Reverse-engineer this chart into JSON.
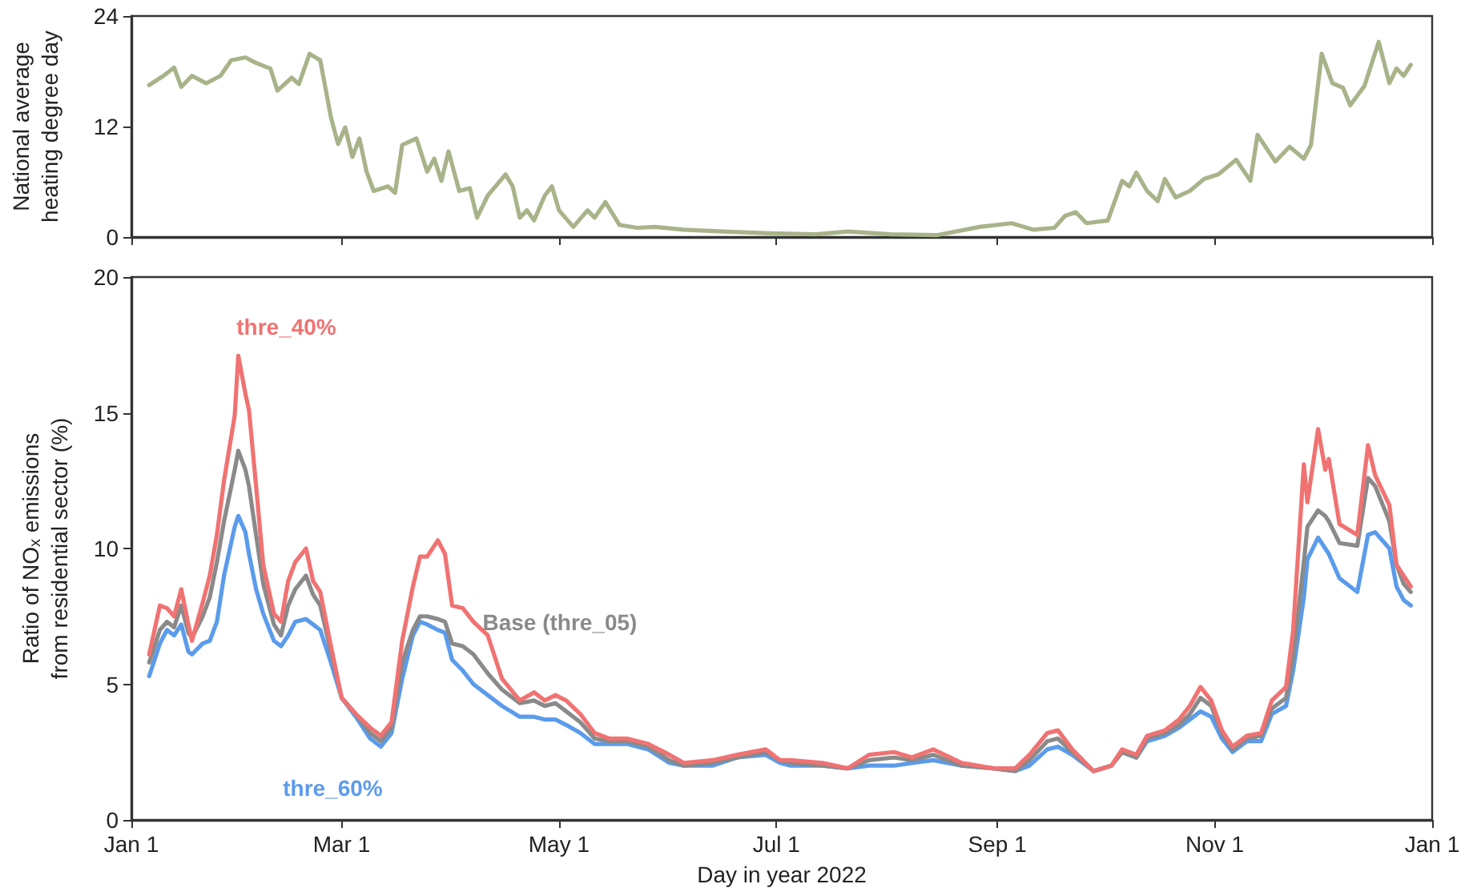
{
  "chart_data": [
    {
      "type": "line",
      "ylabel": "National average heating degree day",
      "xlim": [
        "2022-01-01",
        "2023-01-01"
      ],
      "ylim": [
        0,
        24
      ],
      "yticks": [
        0,
        12,
        24
      ],
      "tick_labels": "y",
      "grid": false,
      "legend": false,
      "marker": "none",
      "xticks": [
        {
          "value": "2022-01-01",
          "label": null
        },
        {
          "value": "2022-03-01",
          "label": null
        },
        {
          "value": "2022-05-01",
          "label": null
        },
        {
          "value": "2022-07-01",
          "label": null
        },
        {
          "value": "2022-09-01",
          "label": null
        },
        {
          "value": "2022-11-01",
          "label": null
        },
        {
          "value": "2023-01-01",
          "label": null
        }
      ],
      "x": [
        "2022-01-06",
        "2022-01-10",
        "2022-01-13",
        "2022-01-15",
        "2022-01-18",
        "2022-01-22",
        "2022-01-26",
        "2022-01-29",
        "2022-02-02",
        "2022-02-05",
        "2022-02-09",
        "2022-02-11",
        "2022-02-15",
        "2022-02-17",
        "2022-02-20",
        "2022-02-23",
        "2022-02-26",
        "2022-02-28",
        "2022-03-02",
        "2022-03-04",
        "2022-03-06",
        "2022-03-08",
        "2022-03-10",
        "2022-03-14",
        "2022-03-16",
        "2022-03-18",
        "2022-03-22",
        "2022-03-25",
        "2022-03-27",
        "2022-03-29",
        "2022-03-31",
        "2022-04-03",
        "2022-04-06",
        "2022-04-08",
        "2022-04-11",
        "2022-04-16",
        "2022-04-18",
        "2022-04-20",
        "2022-04-22",
        "2022-04-24",
        "2022-04-27",
        "2022-04-29",
        "2022-05-01",
        "2022-05-05",
        "2022-05-09",
        "2022-05-11",
        "2022-05-14",
        "2022-05-18",
        "2022-05-23",
        "2022-05-28",
        "2022-06-05",
        "2022-06-16",
        "2022-06-29",
        "2022-07-12",
        "2022-07-21",
        "2022-08-02",
        "2022-08-15",
        "2022-08-27",
        "2022-09-05",
        "2022-09-11",
        "2022-09-17",
        "2022-09-20",
        "2022-09-23",
        "2022-09-26",
        "2022-10-02",
        "2022-10-06",
        "2022-10-08",
        "2022-10-10",
        "2022-10-13",
        "2022-10-16",
        "2022-10-18",
        "2022-10-21",
        "2022-10-25",
        "2022-10-29",
        "2022-11-02",
        "2022-11-07",
        "2022-11-11",
        "2022-11-13",
        "2022-11-18",
        "2022-11-22",
        "2022-11-26",
        "2022-11-28",
        "2022-12-01",
        "2022-12-04",
        "2022-12-07",
        "2022-12-09",
        "2022-12-13",
        "2022-12-17",
        "2022-12-20",
        "2022-12-22",
        "2022-12-24",
        "2022-12-26"
      ],
      "series": [
        {
          "color": "#a8b38a",
          "values": [
            16.5,
            17.5,
            18.4,
            16.3,
            17.5,
            16.7,
            17.5,
            19.2,
            19.5,
            18.9,
            18.3,
            15.9,
            17.3,
            16.6,
            19.9,
            19.2,
            13.0,
            10.1,
            11.9,
            8.7,
            10.7,
            7.1,
            5.0,
            5.5,
            4.8,
            10.0,
            10.7,
            7.1,
            8.5,
            6.1,
            9.3,
            5.0,
            5.3,
            2.1,
            4.5,
            6.8,
            5.5,
            2.1,
            2.9,
            1.8,
            4.5,
            5.5,
            2.9,
            1.1,
            2.9,
            2.1,
            3.8,
            1.3,
            1.0,
            1.1,
            0.8,
            0.6,
            0.4,
            0.3,
            0.6,
            0.3,
            0.2,
            1.1,
            1.5,
            0.8,
            1.0,
            2.3,
            2.7,
            1.5,
            1.8,
            6.1,
            5.5,
            7.0,
            5.0,
            3.9,
            6.3,
            4.3,
            5.0,
            6.3,
            6.8,
            8.4,
            6.1,
            11.1,
            8.2,
            9.8,
            8.5,
            10.0,
            19.9,
            16.7,
            16.2,
            14.3,
            16.4,
            21.2,
            16.7,
            18.3,
            17.5,
            18.7
          ]
        }
      ]
    },
    {
      "type": "line",
      "xlabel": "Day in year 2022",
      "ylabel": "Ratio of NO$_{x}$ emissions from residential sector (%)",
      "xlim": [
        "2022-01-01",
        "2023-01-01"
      ],
      "ylim": [
        0,
        20
      ],
      "yticks": [
        0,
        5,
        10,
        15,
        20
      ],
      "grid": false,
      "legend": false,
      "marker": "none",
      "xticks": [
        {
          "value": "2022-01-01",
          "label": "Jan 1"
        },
        {
          "value": "2022-03-01",
          "label": "Mar 1"
        },
        {
          "value": "2022-05-01",
          "label": "May 1"
        },
        {
          "value": "2022-07-01",
          "label": "Jul 1"
        },
        {
          "value": "2022-09-01",
          "label": "Sep 1"
        },
        {
          "value": "2022-11-01",
          "label": "Nov 1"
        },
        {
          "value": "2023-01-01",
          "label": "Jan 1"
        }
      ],
      "x": [
        "2022-01-06",
        "2022-01-09",
        "2022-01-11",
        "2022-01-13",
        "2022-01-15",
        "2022-01-17",
        "2022-01-18",
        "2022-01-21",
        "2022-01-23",
        "2022-01-25",
        "2022-01-27",
        "2022-01-30",
        "2022-01-31",
        "2022-02-02",
        "2022-02-03",
        "2022-02-05",
        "2022-02-07",
        "2022-02-10",
        "2022-02-12",
        "2022-02-14",
        "2022-02-16",
        "2022-02-19",
        "2022-02-21",
        "2022-02-23",
        "2022-02-26",
        "2022-03-01",
        "2022-03-05",
        "2022-03-09",
        "2022-03-12",
        "2022-03-15",
        "2022-03-18",
        "2022-03-21",
        "2022-03-23",
        "2022-03-25",
        "2022-03-28",
        "2022-03-30",
        "2022-04-01",
        "2022-04-04",
        "2022-04-07",
        "2022-04-11",
        "2022-04-15",
        "2022-04-20",
        "2022-04-24",
        "2022-04-27",
        "2022-04-30",
        "2022-05-03",
        "2022-05-07",
        "2022-05-11",
        "2022-05-15",
        "2022-05-20",
        "2022-05-26",
        "2022-06-01",
        "2022-06-05",
        "2022-06-13",
        "2022-06-20",
        "2022-06-28",
        "2022-07-02",
        "2022-07-05",
        "2022-07-14",
        "2022-07-21",
        "2022-07-27",
        "2022-08-03",
        "2022-08-08",
        "2022-08-14",
        "2022-08-22",
        "2022-08-31",
        "2022-09-06",
        "2022-09-10",
        "2022-09-15",
        "2022-09-18",
        "2022-09-22",
        "2022-09-28",
        "2022-10-03",
        "2022-10-06",
        "2022-10-10",
        "2022-10-13",
        "2022-10-18",
        "2022-10-22",
        "2022-10-25",
        "2022-10-28",
        "2022-10-31",
        "2022-11-03",
        "2022-11-06",
        "2022-11-10",
        "2022-11-14",
        "2022-11-17",
        "2022-11-21",
        "2022-11-23",
        "2022-11-26",
        "2022-11-27",
        "2022-11-30",
        "2022-12-02",
        "2022-12-03",
        "2022-12-06",
        "2022-12-11",
        "2022-12-14",
        "2022-12-16",
        "2022-12-20",
        "2022-12-22",
        "2022-12-24",
        "2022-12-26"
      ],
      "series": [
        {
          "name": "thre_40%",
          "color": "#f07272",
          "values": [
            6.1,
            7.9,
            7.8,
            7.5,
            8.5,
            7.2,
            6.6,
            8.0,
            9.0,
            10.5,
            12.5,
            14.9,
            17.1,
            15.7,
            15.1,
            12.3,
            9.4,
            7.6,
            7.3,
            8.8,
            9.5,
            10.0,
            8.8,
            8.4,
            6.4,
            4.5,
            3.9,
            3.4,
            3.1,
            3.6,
            6.6,
            8.6,
            9.7,
            9.7,
            10.3,
            9.8,
            7.9,
            7.8,
            7.3,
            6.8,
            5.2,
            4.4,
            4.7,
            4.4,
            4.6,
            4.4,
            3.9,
            3.2,
            3.0,
            3.0,
            2.8,
            2.4,
            2.1,
            2.2,
            2.4,
            2.6,
            2.2,
            2.2,
            2.1,
            1.9,
            2.4,
            2.5,
            2.3,
            2.6,
            2.1,
            1.9,
            1.9,
            2.4,
            3.2,
            3.3,
            2.6,
            1.8,
            2.0,
            2.6,
            2.4,
            3.1,
            3.3,
            3.7,
            4.2,
            4.9,
            4.4,
            3.3,
            2.7,
            3.1,
            3.2,
            4.4,
            4.9,
            7.0,
            13.1,
            11.7,
            14.4,
            12.9,
            13.3,
            10.9,
            10.5,
            13.8,
            12.7,
            11.6,
            9.4,
            9.0,
            8.6
          ]
        },
        {
          "name": "Base (thre_05)",
          "color": "#8a8a8a",
          "values": [
            5.8,
            7.0,
            7.3,
            7.1,
            7.9,
            6.9,
            6.7,
            7.5,
            8.2,
            9.5,
            11.0,
            12.9,
            13.6,
            12.9,
            12.3,
            10.5,
            8.7,
            7.2,
            6.8,
            7.9,
            8.5,
            9.0,
            8.3,
            7.9,
            6.2,
            4.5,
            3.9,
            3.2,
            2.9,
            3.4,
            5.8,
            7.0,
            7.5,
            7.5,
            7.4,
            7.3,
            6.5,
            6.4,
            6.1,
            5.4,
            4.8,
            4.3,
            4.4,
            4.2,
            4.3,
            4.0,
            3.6,
            3.0,
            2.9,
            2.9,
            2.7,
            2.2,
            2.0,
            2.1,
            2.3,
            2.5,
            2.2,
            2.1,
            2.0,
            1.9,
            2.2,
            2.3,
            2.2,
            2.4,
            2.0,
            1.9,
            1.8,
            2.2,
            2.9,
            3.0,
            2.5,
            1.8,
            2.0,
            2.5,
            2.3,
            3.0,
            3.2,
            3.5,
            3.9,
            4.5,
            4.2,
            3.2,
            2.6,
            3.0,
            3.1,
            4.1,
            4.5,
            6.0,
            9.5,
            10.8,
            11.4,
            11.2,
            11.0,
            10.2,
            10.1,
            12.6,
            12.3,
            11.0,
            9.4,
            8.7,
            8.4
          ]
        },
        {
          "name": "thre_60%",
          "color": "#5b9beb",
          "values": [
            5.3,
            6.5,
            7.0,
            6.8,
            7.2,
            6.2,
            6.1,
            6.5,
            6.6,
            7.3,
            9.0,
            10.8,
            11.2,
            10.6,
            9.8,
            8.5,
            7.6,
            6.6,
            6.4,
            6.8,
            7.3,
            7.4,
            7.2,
            7.0,
            5.8,
            4.5,
            3.8,
            3.0,
            2.7,
            3.2,
            5.2,
            6.8,
            7.3,
            7.2,
            7.0,
            6.9,
            5.9,
            5.5,
            5.0,
            4.6,
            4.2,
            3.8,
            3.8,
            3.7,
            3.7,
            3.5,
            3.2,
            2.8,
            2.8,
            2.8,
            2.6,
            2.1,
            2.0,
            2.0,
            2.3,
            2.4,
            2.1,
            2.0,
            2.0,
            1.9,
            2.0,
            2.0,
            2.1,
            2.2,
            2.0,
            1.9,
            1.8,
            2.0,
            2.6,
            2.7,
            2.4,
            1.8,
            2.0,
            2.5,
            2.3,
            2.9,
            3.1,
            3.4,
            3.7,
            4.0,
            3.8,
            3.0,
            2.5,
            2.9,
            2.9,
            3.9,
            4.2,
            5.5,
            8.2,
            9.6,
            10.4,
            10.0,
            9.8,
            8.9,
            8.4,
            10.5,
            10.6,
            10.0,
            8.6,
            8.1,
            7.9
          ]
        }
      ]
    }
  ]
}
